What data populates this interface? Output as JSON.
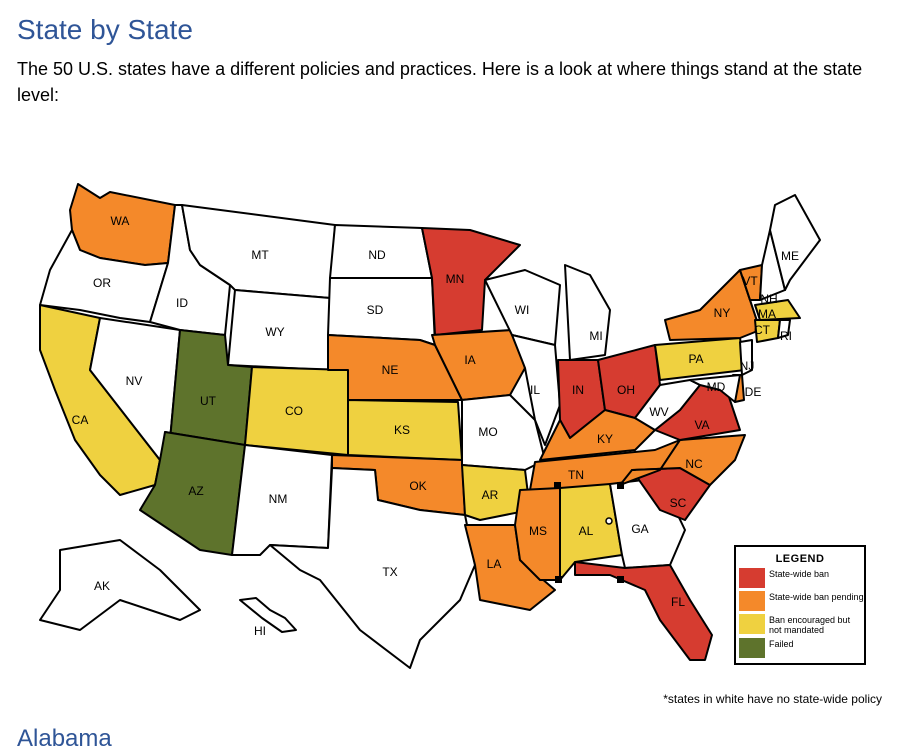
{
  "header": {
    "title": "State by State",
    "intro": "The 50 U.S. states have a different policies and practices. Here is a look at where things stand at the state level:"
  },
  "colors": {
    "ban": "#d63c30",
    "pending": "#f4892a",
    "encouraged": "#efd140",
    "failed": "#5e732c",
    "none": "#ffffff"
  },
  "legend": {
    "title": "LEGEND",
    "items": [
      {
        "label": "State-wide ban",
        "color": "#d63c30"
      },
      {
        "label": "State-wide ban pending",
        "color": "#f4892a"
      },
      {
        "label": "Ban encouraged but not mandated",
        "color": "#efd140"
      },
      {
        "label": "Failed",
        "color": "#5e732c"
      }
    ]
  },
  "map": {
    "states": {
      "WA": "pending",
      "OR": "none",
      "CA": "encouraged",
      "ID": "none",
      "NV": "none",
      "MT": "none",
      "WY": "none",
      "UT": "failed",
      "AZ": "failed",
      "CO": "encouraged",
      "NM": "none",
      "ND": "none",
      "SD": "none",
      "NE": "pending",
      "KS": "encouraged",
      "OK": "pending",
      "TX": "none",
      "MN": "ban",
      "IA": "pending",
      "MO": "none",
      "AR": "encouraged",
      "LA": "pending",
      "WI": "none",
      "IL": "none",
      "MI": "none",
      "IN": "ban",
      "OH": "ban",
      "KY": "pending",
      "TN": "pending",
      "MS": "pending",
      "AL": "encouraged",
      "GA": "none",
      "FL": "ban",
      "SC": "ban",
      "NC": "pending",
      "VA": "ban",
      "WV": "none",
      "PA": "encouraged",
      "NY": "pending",
      "VT": "pending",
      "NH": "none",
      "ME": "none",
      "MA": "encouraged",
      "CT": "encouraged",
      "RI": "none",
      "NJ": "none",
      "DE": "pending",
      "MD": "none",
      "AK": "none",
      "HI": "none"
    }
  },
  "footnote": "*states in white have no state-wide policy",
  "next_heading": "Alabama"
}
